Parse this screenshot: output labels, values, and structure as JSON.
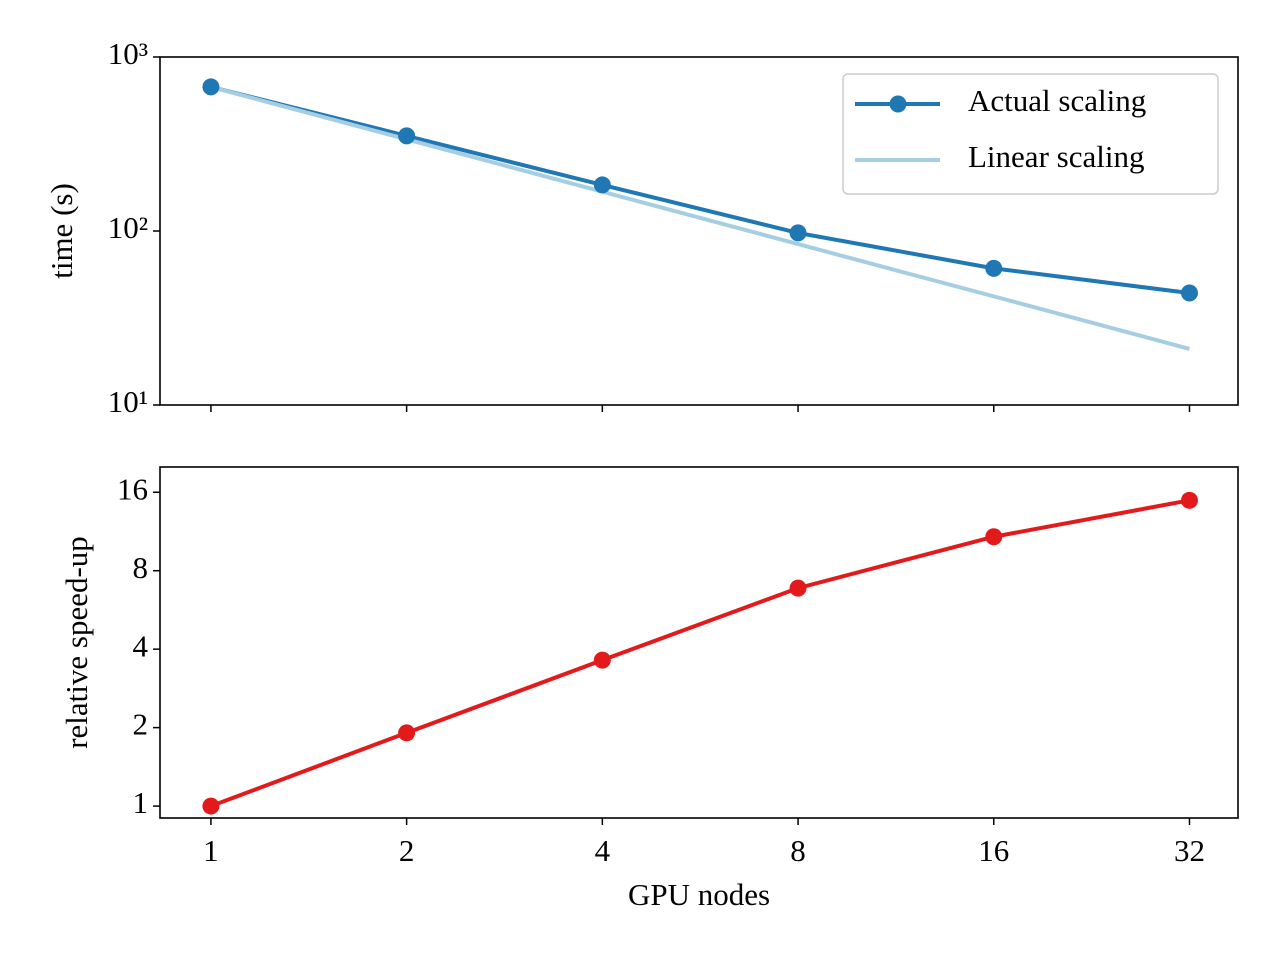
{
  "chart_data": [
    {
      "type": "line",
      "ylabel": "time (s)",
      "log_y": true,
      "log_x": true,
      "x": [
        1,
        2,
        4,
        8,
        16,
        32
      ],
      "series": [
        {
          "name": "Actual scaling",
          "color": "#1f77b4",
          "marker": true,
          "values": [
            673,
            352,
            184,
            97.5,
            61,
            44
          ]
        },
        {
          "name": "Linear scaling",
          "color": "#a6cee3",
          "marker": false,
          "values": [
            673,
            336.5,
            168.3,
            84.1,
            42.1,
            21.0
          ]
        }
      ],
      "ylim": [
        10,
        1000
      ],
      "yticks": [
        {
          "value": 10,
          "label": "10¹"
        },
        {
          "value": 100,
          "label": "10²"
        },
        {
          "value": 1000,
          "label": "10³"
        }
      ],
      "legend": "upper right"
    },
    {
      "type": "line",
      "ylabel": "relative speed-up",
      "xlabel": "GPU nodes",
      "log_y": true,
      "log_x": true,
      "x": [
        1,
        2,
        4,
        8,
        16,
        32
      ],
      "values": [
        1.0,
        1.91,
        3.63,
        6.86,
        10.8,
        14.9
      ],
      "color": "#e31a1c",
      "marker": true,
      "ylim": [
        0.9,
        20
      ],
      "yticks": [
        1,
        2,
        4,
        8,
        16
      ],
      "xlim": [
        0.835,
        38
      ],
      "xticks": [
        1,
        2,
        4,
        8,
        16,
        32
      ]
    }
  ]
}
